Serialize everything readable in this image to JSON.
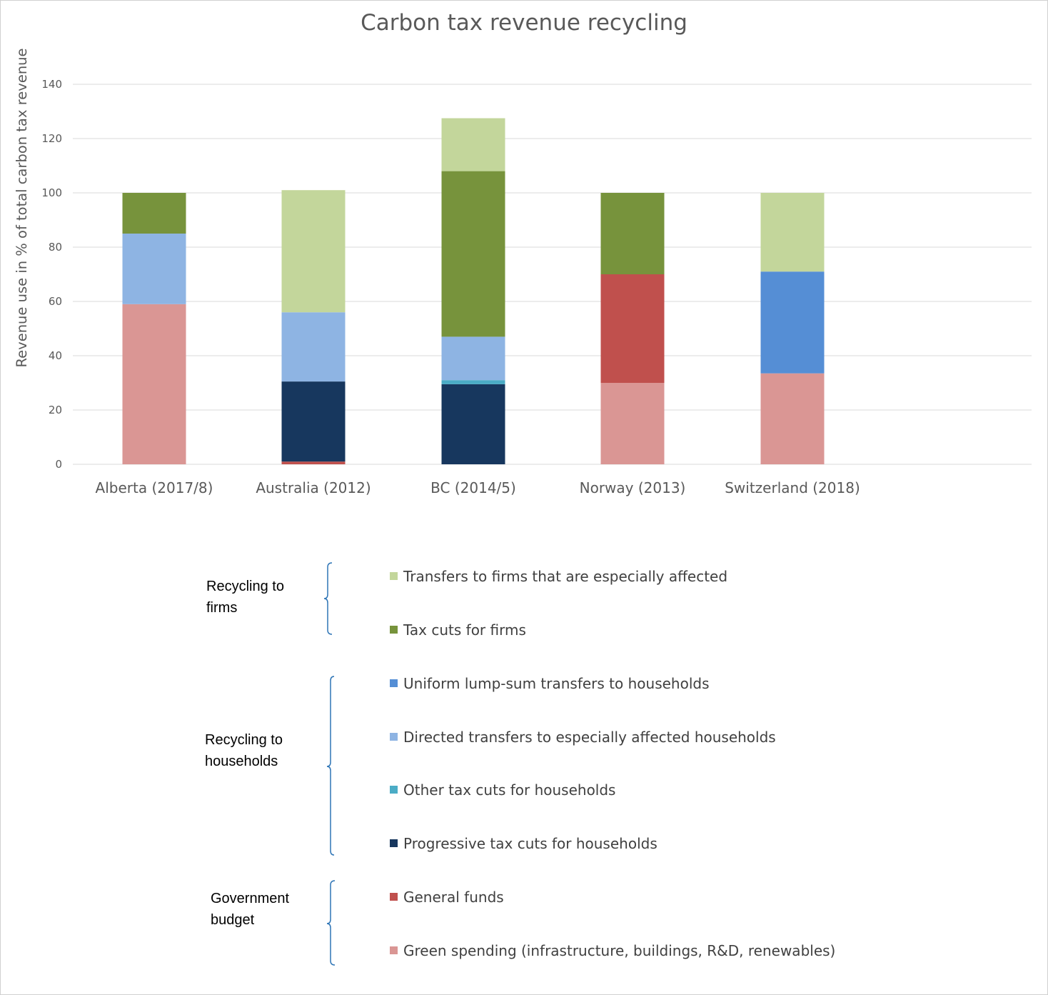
{
  "chart_data": {
    "type": "bar",
    "stacked": true,
    "title": "Carbon tax revenue recycling",
    "xlabel": "",
    "ylabel": "Revenue use in % of total carbon tax revenue",
    "ylim": [
      0,
      140
    ],
    "yticks": [
      0,
      20,
      40,
      60,
      80,
      100,
      120,
      140
    ],
    "grid": true,
    "legend_position": "bottom",
    "categories": [
      "Alberta (2017/8)",
      "Australia (2012)",
      "BC (2014/5)",
      "Norway (2013)",
      "Switzerland (2018)"
    ],
    "series": [
      {
        "name": "Green spending (infrastructure, buildings, R&D, renewables)",
        "color": "#da9694",
        "values": [
          59,
          0,
          0,
          30,
          33.5
        ]
      },
      {
        "name": "General funds",
        "color": "#c0504d",
        "values": [
          0,
          1,
          0,
          40,
          0
        ]
      },
      {
        "name": "Progressive tax cuts for households",
        "color": "#17375e",
        "values": [
          0,
          29.5,
          29.5,
          0,
          0
        ]
      },
      {
        "name": "Other tax cuts for households",
        "color": "#4bacc6",
        "values": [
          0,
          0,
          1.5,
          0,
          0
        ]
      },
      {
        "name": "Directed transfers to especially affected households",
        "color": "#8eb4e3",
        "values": [
          26,
          25.5,
          16,
          0,
          0
        ]
      },
      {
        "name": "Uniform lump-sum transfers to households",
        "color": "#558ed5",
        "values": [
          0,
          0,
          0,
          0,
          37.5
        ]
      },
      {
        "name": "Tax cuts for firms",
        "color": "#77933c",
        "values": [
          15,
          0,
          61,
          30,
          0
        ]
      },
      {
        "name": "Transfers to firms that are especially affected",
        "color": "#c3d69b",
        "values": [
          0,
          45,
          19.5,
          0,
          29
        ]
      }
    ]
  },
  "legend_groups": [
    {
      "label": "Recycling to firms"
    },
    {
      "label": "Recycling to households"
    },
    {
      "label": "Government budget"
    }
  ]
}
